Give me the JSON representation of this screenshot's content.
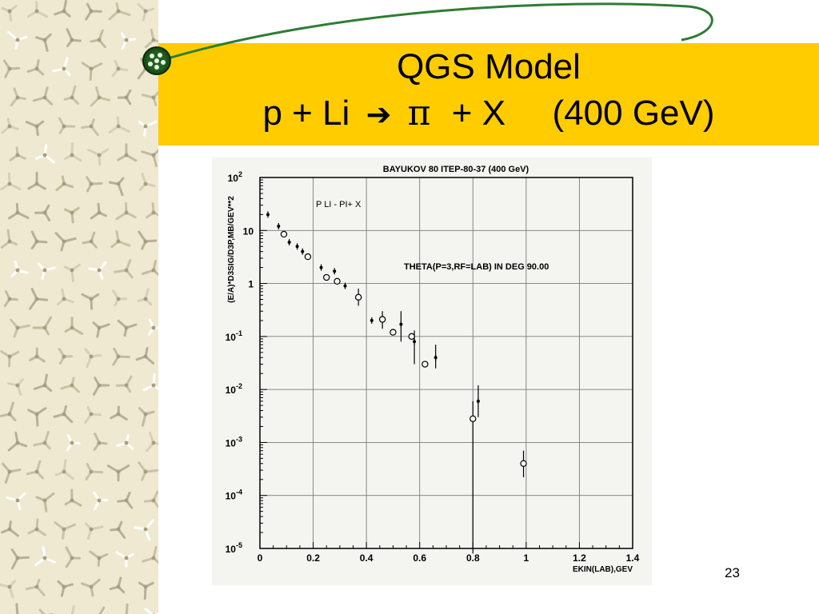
{
  "slide": {
    "title_line1": "QGS Model",
    "title_line2_parts": [
      "p + Li",
      "➔",
      "π",
      "+ X",
      "(400 GeV)"
    ],
    "page_number": "23",
    "colors": {
      "title_band": "#ffcc00",
      "orbit_line": "#2e7d32",
      "sidebar_bg": "#efe9d2"
    }
  },
  "chart_data": {
    "type": "scatter",
    "title": "BAYUKOV 80   ITEP-80-37 (400 GeV)",
    "label_reaction": "P LI - PI+ X",
    "label_angle": "THETA(P=3,RF=LAB) IN DEG   90.00",
    "xlabel": "EKIN(LAB),GEV",
    "ylabel": "(E/A)*D3SIG/D3P,MB/GEV**2",
    "xlim": [
      0,
      1.4
    ],
    "ylim": [
      1e-05,
      100
    ],
    "yscale": "log",
    "grid": true,
    "x_ticks": [
      "0",
      "0.2",
      "0.4",
      "0.6",
      "0.8",
      "1",
      "1.2",
      "1.4"
    ],
    "y_ticks": [
      {
        "base": "10",
        "exp": "2"
      },
      {
        "base": "10",
        "exp": ""
      },
      {
        "base": "1",
        "exp": ""
      },
      {
        "base": "10",
        "exp": "-1"
      },
      {
        "base": "10",
        "exp": "-2"
      },
      {
        "base": "10",
        "exp": "-3"
      },
      {
        "base": "10",
        "exp": "-4"
      },
      {
        "base": "10",
        "exp": "-5"
      }
    ],
    "series": [
      {
        "marker": "filled",
        "points": [
          {
            "x": 0.03,
            "y": 20
          },
          {
            "x": 0.07,
            "y": 12
          },
          {
            "x": 0.11,
            "y": 6
          },
          {
            "x": 0.14,
            "y": 5
          },
          {
            "x": 0.16,
            "y": 4
          },
          {
            "x": 0.23,
            "y": 2
          },
          {
            "x": 0.28,
            "y": 1.7
          },
          {
            "x": 0.32,
            "y": 0.9
          },
          {
            "x": 0.42,
            "y": 0.2
          },
          {
            "x": 0.53,
            "y": 0.17,
            "err_lo": 0.08,
            "err_hi": 0.3
          },
          {
            "x": 0.58,
            "y": 0.08,
            "err_lo": 0.03,
            "err_hi": 0.13
          },
          {
            "x": 0.66,
            "y": 0.04,
            "err_lo": 0.025,
            "err_hi": 0.07
          },
          {
            "x": 0.82,
            "y": 0.006,
            "err_lo": 0.003,
            "err_hi": 0.012
          }
        ]
      },
      {
        "marker": "open",
        "points": [
          {
            "x": 0.09,
            "y": 8.5
          },
          {
            "x": 0.18,
            "y": 3.2
          },
          {
            "x": 0.25,
            "y": 1.3
          },
          {
            "x": 0.29,
            "y": 1.1
          },
          {
            "x": 0.37,
            "y": 0.55,
            "err_lo": 0.38,
            "err_hi": 0.8
          },
          {
            "x": 0.46,
            "y": 0.21,
            "err_lo": 0.14,
            "err_hi": 0.3
          },
          {
            "x": 0.5,
            "y": 0.12
          },
          {
            "x": 0.57,
            "y": 0.1
          },
          {
            "x": 0.62,
            "y": 0.03
          },
          {
            "x": 0.8,
            "y": 0.0028,
            "err_lo": 8e-06,
            "err_hi": 0.006
          },
          {
            "x": 0.99,
            "y": 0.0004,
            "err_lo": 0.00022,
            "err_hi": 0.0007
          }
        ]
      }
    ]
  }
}
